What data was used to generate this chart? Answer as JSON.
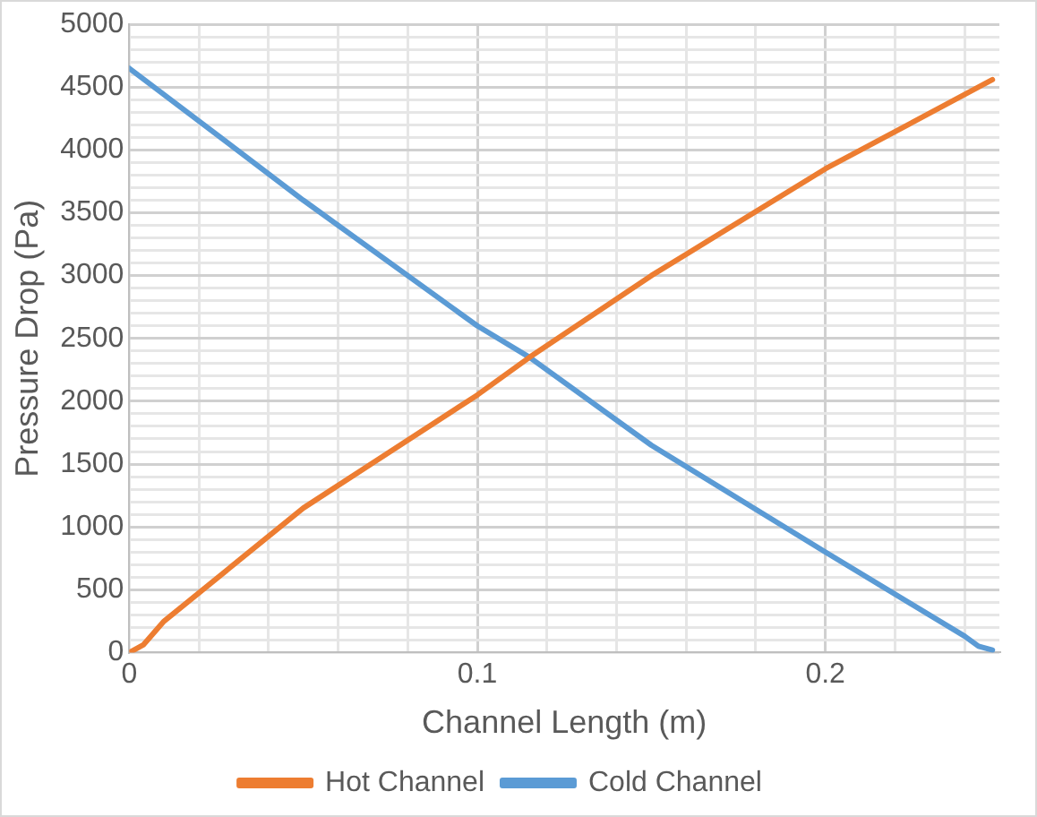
{
  "chart_data": {
    "type": "line",
    "xlabel": "Channel Length (m)",
    "ylabel": "Pressure Drop (Pa)",
    "xlim": [
      0,
      0.25
    ],
    "xticks": [
      0,
      {
        "value": 0.02,
        "label": null
      },
      {
        "value": 0.04,
        "label": null
      },
      {
        "value": 0.06,
        "label": null
      },
      {
        "value": 0.08,
        "label": null
      },
      0.1,
      {
        "value": 0.12,
        "label": null
      },
      {
        "value": 0.14,
        "label": null
      },
      {
        "value": 0.16,
        "label": null
      },
      {
        "value": 0.18,
        "label": null
      },
      0.2,
      {
        "value": 0.22,
        "label": null
      },
      {
        "value": 0.24,
        "label": null
      }
    ],
    "ylim": [
      0,
      5000
    ],
    "yticks": [
      0,
      {
        "value": 100,
        "label": null
      },
      {
        "value": 200,
        "label": null
      },
      {
        "value": 300,
        "label": null
      },
      {
        "value": 400,
        "label": null
      },
      500,
      {
        "value": 600,
        "label": null
      },
      {
        "value": 700,
        "label": null
      },
      {
        "value": 800,
        "label": null
      },
      {
        "value": 900,
        "label": null
      },
      1000,
      {
        "value": 1100,
        "label": null
      },
      {
        "value": 1200,
        "label": null
      },
      {
        "value": 1300,
        "label": null
      },
      {
        "value": 1400,
        "label": null
      },
      1500,
      {
        "value": 1600,
        "label": null
      },
      {
        "value": 1700,
        "label": null
      },
      {
        "value": 1800,
        "label": null
      },
      {
        "value": 1900,
        "label": null
      },
      2000,
      {
        "value": 2100,
        "label": null
      },
      {
        "value": 2200,
        "label": null
      },
      {
        "value": 2300,
        "label": null
      },
      {
        "value": 2400,
        "label": null
      },
      2500,
      {
        "value": 2600,
        "label": null
      },
      {
        "value": 2700,
        "label": null
      },
      {
        "value": 2800,
        "label": null
      },
      {
        "value": 2900,
        "label": null
      },
      3000,
      {
        "value": 3100,
        "label": null
      },
      {
        "value": 3200,
        "label": null
      },
      {
        "value": 3300,
        "label": null
      },
      {
        "value": 3400,
        "label": null
      },
      3500,
      {
        "value": 3600,
        "label": null
      },
      {
        "value": 3700,
        "label": null
      },
      {
        "value": 3800,
        "label": null
      },
      {
        "value": 3900,
        "label": null
      },
      4000,
      {
        "value": 4100,
        "label": null
      },
      {
        "value": 4200,
        "label": null
      },
      {
        "value": 4300,
        "label": null
      },
      {
        "value": 4400,
        "label": null
      },
      4500,
      {
        "value": 4600,
        "label": null
      },
      {
        "value": 4700,
        "label": null
      },
      {
        "value": 4800,
        "label": null
      },
      {
        "value": 4900,
        "label": null
      },
      5000
    ],
    "grid": true,
    "legend": "bottom",
    "marker": "none",
    "line_style": "solid",
    "series": [
      {
        "name": "Hot Channel",
        "color": "#ed7d31",
        "x": [
          0,
          0.004,
          0.01,
          0.05,
          0.1,
          0.115,
          0.15,
          0.2,
          0.248
        ],
        "values": [
          0,
          60,
          250,
          1150,
          2050,
          2350,
          3000,
          3850,
          4560
        ]
      },
      {
        "name": "Cold Channel",
        "color": "#5b9bd5",
        "x": [
          0,
          0.05,
          0.1,
          0.115,
          0.15,
          0.2,
          0.24,
          0.244,
          0.248
        ],
        "values": [
          4650,
          3600,
          2600,
          2350,
          1650,
          800,
          130,
          50,
          20
        ]
      }
    ]
  }
}
